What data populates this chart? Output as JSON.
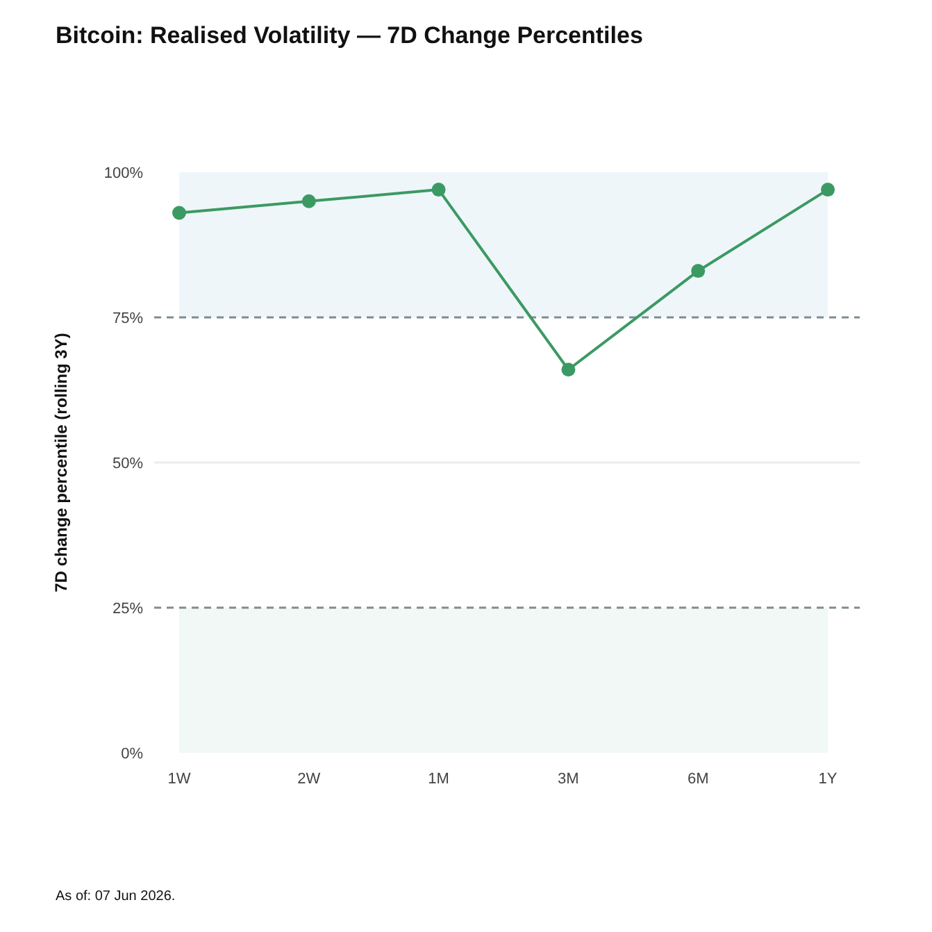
{
  "chart_data": {
    "type": "line",
    "title": "Bitcoin: Realised Volatility — 7D Change Percentiles",
    "ylabel": "7D change percentile (rolling 3Y)",
    "annotations": [
      "As of: 07 Jun 2026."
    ],
    "categories": [
      "1W",
      "2W",
      "1M",
      "3M",
      "6M",
      "1Y"
    ],
    "values": [
      93,
      95,
      97,
      66,
      83,
      97
    ],
    "color": "#3b9a63",
    "ylim": [
      0,
      100
    ],
    "yticks": [
      {
        "value": 0,
        "label": "0%"
      },
      {
        "value": 25,
        "label": "25%"
      },
      {
        "value": 50,
        "label": "50%"
      },
      {
        "value": 75,
        "label": "75%"
      },
      {
        "value": 100,
        "label": "100%"
      }
    ],
    "marker": "circle",
    "line_style": "solid",
    "ref_lines": [
      {
        "axis": "y",
        "value": 75,
        "color": "#7f8c90",
        "line_style": "dashed"
      },
      {
        "axis": "y",
        "value": 50,
        "color": "#ececec",
        "line_style": "solid"
      },
      {
        "axis": "y",
        "value": 25,
        "color": "#7f8c90",
        "line_style": "dashed"
      }
    ],
    "bands": [
      {
        "axis": "y",
        "from": 75,
        "to": 100,
        "color": "#eff6f9"
      },
      {
        "axis": "y",
        "from": 0,
        "to": 25,
        "color": "#f1f8f5"
      }
    ]
  }
}
